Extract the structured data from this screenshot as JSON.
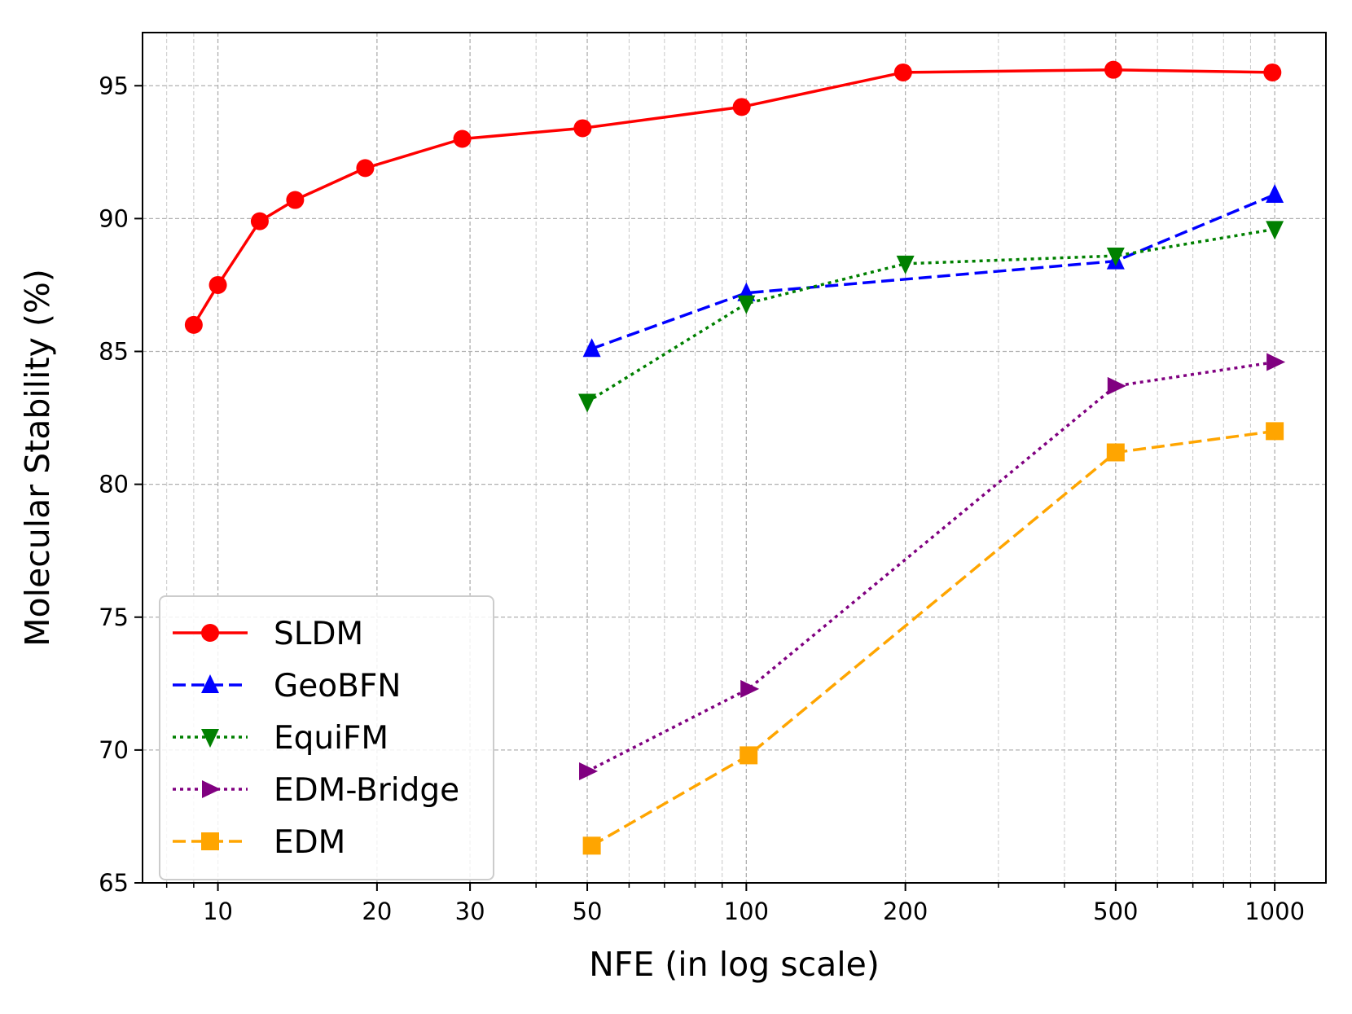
{
  "chart_data": {
    "type": "line",
    "title": "",
    "xlabel": "NFE (in log scale)",
    "ylabel": "Molecular Stability (%)",
    "xscale": "log",
    "xlim": [
      7.2,
      1250
    ],
    "ylim": [
      65,
      97
    ],
    "xticks": [
      10,
      20,
      30,
      50,
      100,
      200,
      500,
      1000
    ],
    "xtick_labels": [
      "10",
      "20",
      "30",
      "50",
      "100",
      "200",
      "500",
      "1000"
    ],
    "yticks": [
      65,
      70,
      75,
      80,
      85,
      90,
      95
    ],
    "ytick_labels": [
      "65",
      "70",
      "75",
      "80",
      "85",
      "90",
      "95"
    ],
    "grid": true,
    "legend_position": "lower-left",
    "series": [
      {
        "name": "SLDM",
        "color": "#ff0000",
        "line_style": "solid",
        "marker": "circle",
        "x": [
          9,
          10,
          12,
          14,
          19,
          29,
          49,
          98,
          198,
          495,
          990
        ],
        "y": [
          86.0,
          87.5,
          89.9,
          90.7,
          91.9,
          93.0,
          93.4,
          94.2,
          95.5,
          95.6,
          95.5
        ]
      },
      {
        "name": "GeoBFN",
        "color": "#0000ff",
        "line_style": "dashed",
        "marker": "triangle-up",
        "x": [
          51,
          100,
          500,
          1000
        ],
        "y": [
          85.1,
          87.2,
          88.4,
          90.9
        ]
      },
      {
        "name": "EquiFM",
        "color": "#008000",
        "line_style": "dotted",
        "marker": "triangle-down",
        "x": [
          50,
          100,
          200,
          500,
          1000
        ],
        "y": [
          83.1,
          86.8,
          88.3,
          88.6,
          89.6
        ]
      },
      {
        "name": "EDM-Bridge",
        "color": "#800080",
        "line_style": "dotted",
        "marker": "triangle-right",
        "x": [
          50,
          101,
          500,
          1000
        ],
        "y": [
          69.2,
          72.3,
          83.7,
          84.6
        ]
      },
      {
        "name": "EDM",
        "color": "#ffa500",
        "line_style": "dashed",
        "marker": "square",
        "x": [
          51,
          101,
          500,
          1000
        ],
        "y": [
          66.4,
          69.8,
          81.2,
          82.0
        ]
      }
    ]
  }
}
